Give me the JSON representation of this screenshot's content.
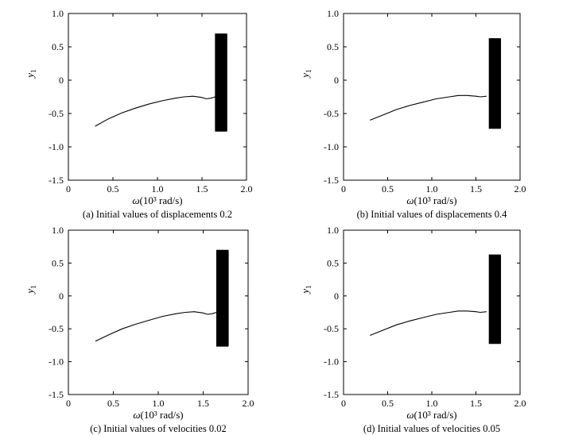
{
  "figure": {
    "panels": [
      {
        "caption": "(a) Initial values of displacements 0.2"
      },
      {
        "caption": "(b) Initial values of displacements 0.4"
      },
      {
        "caption": "(c) Initial values of velocities 0.02"
      },
      {
        "caption": "(d) Initial values of velocities 0.05"
      }
    ]
  },
  "chart_data": [
    {
      "type": "line",
      "caption": "(a) Initial values of displacements 0.2",
      "xlabel_symbol": "ω",
      "xlabel_unit": "(10³ rad/s)",
      "ylabel_symbol": "y",
      "ylabel_sub": "1",
      "xlim": [
        0,
        2.0
      ],
      "ylim": [
        -1.5,
        1.0
      ],
      "xticks": [
        "0",
        "0.5",
        "1.0",
        "1.5",
        "2.0"
      ],
      "yticks": [
        "1.0",
        "0.5",
        "0",
        "-0.5",
        "-1.0",
        "-1.5"
      ],
      "grid": false,
      "series": [
        {
          "x": [
            0.3,
            0.45,
            0.6,
            0.75,
            0.9,
            1.05,
            1.2,
            1.3,
            1.4,
            1.5,
            1.55,
            1.6,
            1.65
          ],
          "y": [
            -0.69,
            -0.58,
            -0.49,
            -0.42,
            -0.36,
            -0.31,
            -0.27,
            -0.25,
            -0.24,
            -0.26,
            -0.28,
            -0.27,
            -0.25
          ]
        }
      ],
      "oscillation_band": {
        "x_start": 1.65,
        "x_end": 1.78,
        "y_min": -0.77,
        "y_max": 0.7
      }
    },
    {
      "type": "line",
      "caption": "(b) Initial values of displacements 0.4",
      "xlabel_symbol": "ω",
      "xlabel_unit": "(10³ rad/s)",
      "ylabel_symbol": "y",
      "ylabel_sub": "1",
      "xlim": [
        0,
        2.0
      ],
      "ylim": [
        -1.5,
        1.0
      ],
      "xticks": [
        "0",
        "0.5",
        "1.0",
        "1.5",
        "2.0"
      ],
      "yticks": [
        "1.0",
        "0.5",
        "0",
        "-0.5",
        "-1.0",
        "-1.5"
      ],
      "grid": false,
      "series": [
        {
          "x": [
            0.3,
            0.45,
            0.6,
            0.75,
            0.9,
            1.05,
            1.2,
            1.3,
            1.4,
            1.5,
            1.55,
            1.62
          ],
          "y": [
            -0.6,
            -0.52,
            -0.44,
            -0.38,
            -0.33,
            -0.28,
            -0.25,
            -0.23,
            -0.23,
            -0.24,
            -0.25,
            -0.24
          ]
        }
      ],
      "oscillation_band": {
        "x_start": 1.65,
        "x_end": 1.78,
        "y_min": -0.73,
        "y_max": 0.63
      }
    },
    {
      "type": "line",
      "caption": "(c) Initial values of velocities 0.02",
      "xlabel_symbol": "ω",
      "xlabel_unit": "(10³ rad/s)",
      "ylabel_symbol": "y",
      "ylabel_sub": "1",
      "xlim": [
        0,
        2.0
      ],
      "ylim": [
        -1.5,
        1.0
      ],
      "xticks": [
        "0",
        "0.5",
        "1.0",
        "1.5",
        "2.0"
      ],
      "yticks": [
        "1.0",
        "0.5",
        "0",
        "-0.5",
        "-1.0",
        "-1.5"
      ],
      "grid": false,
      "series": [
        {
          "x": [
            0.3,
            0.45,
            0.6,
            0.75,
            0.9,
            1.05,
            1.2,
            1.3,
            1.4,
            1.5,
            1.55,
            1.6,
            1.65
          ],
          "y": [
            -0.69,
            -0.59,
            -0.5,
            -0.43,
            -0.37,
            -0.31,
            -0.27,
            -0.25,
            -0.24,
            -0.26,
            -0.28,
            -0.27,
            -0.25
          ]
        }
      ],
      "oscillation_band": {
        "x_start": 1.65,
        "x_end": 1.78,
        "y_min": -0.77,
        "y_max": 0.7
      }
    },
    {
      "type": "line",
      "caption": "(d) Initial values of velocities 0.05",
      "xlabel_symbol": "ω",
      "xlabel_unit": "(10³ rad/s)",
      "ylabel_symbol": "y",
      "ylabel_sub": "1",
      "xlim": [
        0,
        2.0
      ],
      "ylim": [
        -1.5,
        1.0
      ],
      "xticks": [
        "0",
        "0.5",
        "1.0",
        "1.5",
        "2.0"
      ],
      "yticks": [
        "1.0",
        "0.5",
        "0",
        "-0.5",
        "-1.0",
        "-1.5"
      ],
      "grid": false,
      "series": [
        {
          "x": [
            0.3,
            0.45,
            0.6,
            0.75,
            0.9,
            1.05,
            1.2,
            1.3,
            1.4,
            1.5,
            1.55,
            1.62
          ],
          "y": [
            -0.6,
            -0.52,
            -0.44,
            -0.38,
            -0.33,
            -0.28,
            -0.25,
            -0.23,
            -0.23,
            -0.24,
            -0.25,
            -0.24
          ]
        }
      ],
      "oscillation_band": {
        "x_start": 1.65,
        "x_end": 1.78,
        "y_min": -0.73,
        "y_max": 0.63
      }
    }
  ]
}
